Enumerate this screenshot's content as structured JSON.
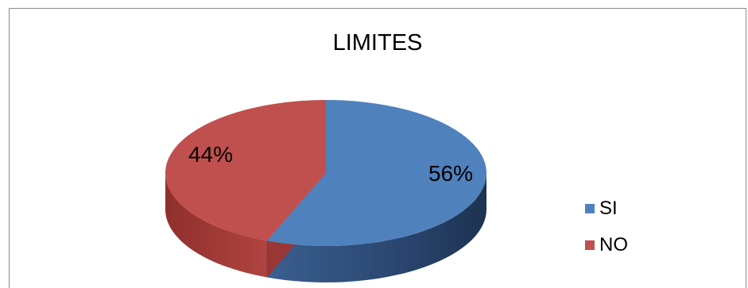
{
  "chart_data": {
    "type": "pie",
    "title": "LIMITES",
    "categories": [
      "SI",
      "NO"
    ],
    "values": [
      56,
      44
    ],
    "data_labels": [
      "56%",
      "44%"
    ],
    "colors": [
      "#4f81bd",
      "#c0504d"
    ],
    "style": "3d",
    "legend_position": "right"
  }
}
